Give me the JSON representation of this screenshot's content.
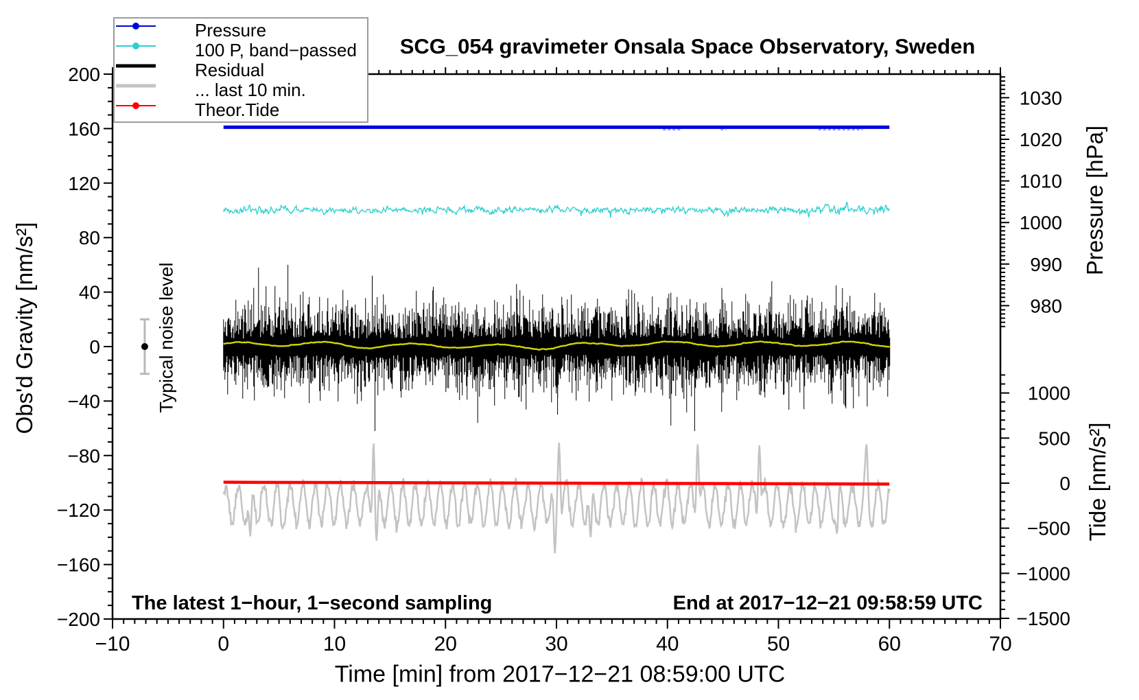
{
  "title": "SCG_054 gravimeter Onsala Space Observatory, Sweden",
  "legend": {
    "items": [
      {
        "label": "Pressure",
        "color": "#0000e0",
        "style": "thin-dot"
      },
      {
        "label": "100 P, band−passed",
        "color": "#2bcfcf",
        "style": "thin-dot"
      },
      {
        "label": "Residual",
        "color": "#000000",
        "style": "thick"
      },
      {
        "label": "... last 10 min.",
        "color": "#c3c3c3",
        "style": "thick"
      },
      {
        "label": "Theor.Tide",
        "color": "#ff0000",
        "style": "thin-dot"
      }
    ]
  },
  "annotations": {
    "noise_label": "Typical noise level",
    "sampling_note": "The latest 1−hour, 1−second sampling",
    "end_note": "End at 2017−12−21 09:58:59 UTC"
  },
  "chart_data": {
    "type": "line",
    "title": "SCG_054 gravimeter Onsala Space Observatory, Sweden",
    "x_axis": {
      "label": "Time [min] from 2017−12−21 08:59:00 UTC",
      "range": [
        -10,
        70
      ],
      "tick_values": [
        -10,
        0,
        10,
        20,
        30,
        40,
        50,
        60,
        70
      ],
      "tick_labels": [
        "−10",
        "0",
        "10",
        "20",
        "30",
        "40",
        "50",
        "60",
        "70"
      ],
      "minor_step": 1
    },
    "y_left": {
      "label": "Obs'd Gravity [nm/s²]",
      "range": [
        -200,
        200
      ],
      "tick_values": [
        200,
        160,
        120,
        80,
        40,
        0,
        -40,
        -80,
        -120,
        -160,
        -200
      ],
      "tick_labels": [
        "200",
        "160",
        "120",
        "80",
        "40",
        "0",
        "−40",
        "−80",
        "−120",
        "−160",
        "−200"
      ],
      "minor_step": 10
    },
    "y_right_pressure": {
      "label": "Pressure [hPa]",
      "tick_values": [
        1030,
        1020,
        1010,
        1000,
        990,
        980
      ],
      "tick_labels": [
        "1030",
        "1020",
        "1010",
        "1000",
        "990",
        "980"
      ],
      "minor_step": 1,
      "minor_range": [
        975,
        1035
      ]
    },
    "y_right_tide": {
      "label": "Tide [nm/s²]",
      "tick_values": [
        1000,
        500,
        0,
        -500,
        -1000,
        -1500
      ],
      "tick_labels": [
        "1000",
        "500",
        "0",
        "−500",
        "−1000",
        "−1500"
      ],
      "minor_step": 100,
      "minor_range": [
        -1500,
        1200
      ]
    },
    "noise_marker": {
      "t": -7.1,
      "value": 0,
      "error": 20
    },
    "series": [
      {
        "name": "Pressure",
        "color": "#0000e0",
        "kind": "pressure",
        "gravity_level": 161,
        "approx_hPa": 1023,
        "t_span": [
          0,
          60
        ],
        "fuzz_color": "#9aa4f6",
        "fuzz_segments": [
          [
            39.6,
            41.2
          ],
          [
            44.8,
            45.3
          ],
          [
            53.6,
            57.6
          ]
        ]
      },
      {
        "name": "100 P, band−passed",
        "color": "#2bcfcf",
        "kind": "bandpassed",
        "center": 100,
        "noise_amp": 2.2,
        "t_span": [
          0,
          60
        ]
      },
      {
        "name": "Residual",
        "color": "#000000",
        "kind": "residual",
        "center": 0,
        "typical_envelope": 20,
        "t_span": [
          0,
          60
        ],
        "spikes": [
          {
            "t": 5.8,
            "v": 60
          },
          {
            "t": 13.4,
            "v": 52
          },
          {
            "t": 13.65,
            "v": -62
          },
          {
            "t": 18.9,
            "v": 44
          },
          {
            "t": 22.9,
            "v": -56
          },
          {
            "t": 26.4,
            "v": 46
          },
          {
            "t": 30.1,
            "v": -50
          },
          {
            "t": 36.5,
            "v": 42
          },
          {
            "t": 42.45,
            "v": -62
          },
          {
            "t": 44.9,
            "v": 43
          },
          {
            "t": 49.4,
            "v": 48
          },
          {
            "t": 52.3,
            "v": -46
          },
          {
            "t": 55.2,
            "v": 45
          },
          {
            "t": 58.0,
            "v": -44
          }
        ]
      },
      {
        "name": "Residual smoothed",
        "color": "#d4d400",
        "kind": "smoothed",
        "center": 1,
        "amp": 2,
        "t_span": [
          0,
          60
        ]
      },
      {
        "name": "... last 10 min.",
        "color": "#c3c3c3",
        "kind": "last10",
        "axis": "tide",
        "center": -235,
        "base_amp": 200,
        "t_span": [
          0,
          60
        ],
        "events": [
          {
            "t": 2.4,
            "v": -590
          },
          {
            "t": 5.3,
            "v": -500
          },
          {
            "t": 13.55,
            "v": 520
          },
          {
            "t": 13.8,
            "v": -640
          },
          {
            "t": 29.85,
            "v": -780
          },
          {
            "t": 30.25,
            "v": 450
          },
          {
            "t": 33.1,
            "v": -600
          },
          {
            "t": 42.7,
            "v": 430
          },
          {
            "t": 48.3,
            "v": 420
          },
          {
            "t": 55.3,
            "v": -560
          },
          {
            "t": 57.9,
            "v": 430
          }
        ]
      },
      {
        "name": "Theor.Tide",
        "color": "#ff0000",
        "kind": "tide",
        "axis": "tide",
        "start_value": 10,
        "end_value": -10,
        "t_span": [
          0,
          60
        ]
      }
    ]
  }
}
